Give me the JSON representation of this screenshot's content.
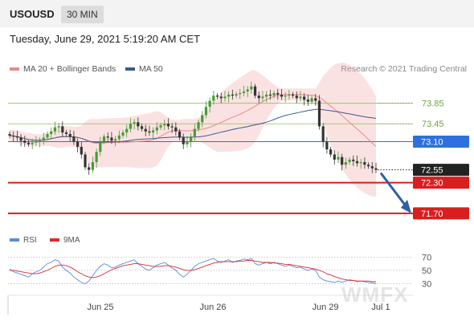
{
  "header": {
    "symbol": "USOUSD",
    "timeframe": "30 MIN",
    "datetime": "Tuesday, June 29, 2021 5:19:20 AM CET"
  },
  "legend": {
    "ma20": {
      "label": "MA 20 + Bollinger Bands",
      "color": "#e8898a"
    },
    "ma50": {
      "label": "MA 50",
      "color": "#3a5a8c"
    },
    "credit": "Research © 2021 Trading Central"
  },
  "rsi_legend": {
    "rsi": {
      "label": "RSI",
      "color": "#5b8ad8"
    },
    "ma9": {
      "label": "9MA",
      "color": "#d92b2b"
    }
  },
  "watermark": "WMFX",
  "chart_data": [
    {
      "type": "candlestick",
      "title": "",
      "ylim": [
        71.4,
        74.3
      ],
      "x_ticks": [
        "Jun 25",
        "Jun 26",
        "Jun 29",
        "Jul 1"
      ],
      "levels": [
        {
          "value": 73.85,
          "label": "73.85",
          "style": "resistance",
          "color": "#8cc152"
        },
        {
          "value": 73.45,
          "label": "73.45",
          "style": "resistance",
          "color": "#8cc152"
        },
        {
          "value": 73.1,
          "label": "73.10",
          "style": "pivot",
          "color": "#2f6fe0"
        },
        {
          "value": 72.55,
          "label": "72.55",
          "style": "last",
          "color": "#222222"
        },
        {
          "value": 72.3,
          "label": "72.30",
          "style": "support",
          "color": "#d91e1e"
        },
        {
          "value": 71.7,
          "label": "71.70",
          "style": "support",
          "color": "#d91e1e"
        }
      ],
      "close": [
        73.22,
        73.2,
        73.18,
        73.12,
        73.08,
        73.05,
        73.08,
        73.1,
        73.12,
        73.18,
        73.25,
        73.3,
        73.38,
        73.4,
        73.28,
        73.25,
        73.2,
        73.1,
        73.0,
        72.85,
        72.6,
        72.55,
        72.7,
        72.9,
        73.1,
        73.2,
        73.18,
        73.12,
        73.15,
        73.22,
        73.28,
        73.35,
        73.45,
        73.48,
        73.4,
        73.35,
        73.3,
        73.28,
        73.32,
        73.38,
        73.42,
        73.45,
        73.4,
        73.38,
        73.3,
        73.18,
        73.05,
        73.1,
        73.2,
        73.35,
        73.48,
        73.62,
        73.78,
        73.9,
        74.0,
        73.98,
        73.95,
        73.98,
        74.02,
        74.0,
        74.03,
        74.05,
        74.08,
        74.12,
        74.18,
        74.0,
        73.95,
        73.98,
        74.02,
        74.0,
        74.05,
        74.02,
        73.98,
        74.0,
        74.02,
        74.0,
        73.95,
        73.98,
        73.92,
        73.88,
        73.95,
        73.9,
        73.4,
        73.1,
        72.95,
        72.85,
        72.75,
        72.8,
        72.65,
        72.7,
        72.75,
        72.72,
        72.68,
        72.7,
        72.65,
        72.62,
        72.58,
        72.55
      ],
      "ma20_color": "#e8898a",
      "ma50_color": "#3a5a8c"
    },
    {
      "type": "line",
      "title": "RSI",
      "ylim": [
        15,
        80
      ],
      "y_ticks": [
        30,
        50,
        70
      ],
      "series": [
        {
          "name": "RSI",
          "color": "#5b8ad8",
          "values": [
            52,
            48,
            46,
            44,
            42,
            40,
            45,
            48,
            50,
            55,
            60,
            62,
            66,
            64,
            55,
            50,
            46,
            40,
            36,
            32,
            30,
            34,
            42,
            50,
            56,
            60,
            58,
            54,
            55,
            58,
            60,
            62,
            64,
            66,
            60,
            56,
            52,
            50,
            54,
            58,
            60,
            62,
            58,
            54,
            50,
            44,
            40,
            44,
            50,
            56,
            60,
            62,
            64,
            66,
            68,
            64,
            62,
            64,
            66,
            62,
            64,
            65,
            67,
            66,
            68,
            60,
            58,
            60,
            62,
            60,
            62,
            60,
            58,
            56,
            58,
            56,
            54,
            55,
            52,
            50,
            52,
            50,
            40,
            36,
            34,
            33,
            32,
            34,
            32,
            34,
            36,
            35,
            33,
            34,
            33,
            32,
            31,
            30
          ]
        },
        {
          "name": "9MA",
          "color": "#d92b2b",
          "values": [
            50,
            50,
            49,
            48,
            47,
            46,
            45,
            45,
            46,
            48,
            50,
            53,
            56,
            58,
            58,
            57,
            55,
            52,
            48,
            45,
            42,
            40,
            39,
            40,
            42,
            45,
            48,
            51,
            53,
            55,
            57,
            58,
            59,
            60,
            60,
            59,
            58,
            57,
            56,
            56,
            56,
            57,
            57,
            56,
            55,
            53,
            51,
            50,
            50,
            51,
            53,
            55,
            57,
            59,
            61,
            62,
            63,
            63,
            63,
            63,
            63,
            64,
            64,
            65,
            65,
            64,
            63,
            62,
            62,
            62,
            61,
            61,
            60,
            59,
            59,
            58,
            57,
            56,
            55,
            54,
            53,
            52,
            50,
            48,
            45,
            43,
            41,
            39,
            37,
            36,
            35,
            35,
            34,
            34,
            34,
            34,
            33,
            33
          ]
        }
      ]
    }
  ]
}
